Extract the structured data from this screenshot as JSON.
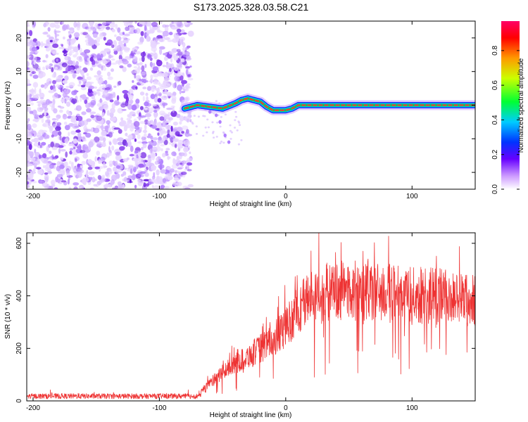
{
  "title": "S173.2025.328.03.58.C21",
  "chart_data": [
    {
      "type": "heatmap",
      "title": "S173.2025.328.03.58.C21",
      "xlabel": "Height of straight line (km)",
      "ylabel": "Frequency (Hz)",
      "xlim": [
        -205,
        150
      ],
      "ylim": [
        -25,
        25
      ],
      "xticks": [
        -200,
        -100,
        0,
        100
      ],
      "yticks": [
        -20,
        -10,
        0,
        10,
        20
      ],
      "noise_region": [
        -205,
        -75
      ],
      "signal_trace": {
        "x": [
          -80,
          -70,
          -60,
          -50,
          -40,
          -35,
          -30,
          -25,
          -20,
          -15,
          -10,
          -5,
          0,
          5,
          10,
          20,
          40,
          60,
          80,
          100,
          120,
          150
        ],
        "y": [
          -1,
          0,
          -0.5,
          -1,
          0.5,
          1.5,
          2,
          1.5,
          1,
          -0.5,
          -1.5,
          -1.5,
          -1.5,
          -1,
          0,
          0,
          0,
          0,
          0,
          0,
          0,
          0
        ]
      },
      "colorbar": {
        "label": "Normalized spectral amplitude",
        "ticks": [
          0.0,
          0.2,
          0.4,
          0.6,
          0.8
        ],
        "range": [
          0,
          0.97
        ]
      }
    },
    {
      "type": "line",
      "xlabel": "Height of straight line (km)",
      "ylabel": "SNR (10 * v/v)",
      "xlim": [
        -205,
        150
      ],
      "ylim": [
        0,
        640
      ],
      "xticks": [
        -200,
        -100,
        0,
        100
      ],
      "yticks": [
        0,
        200,
        400,
        600
      ],
      "series": [
        {
          "name": "SNR",
          "color": "#ee3333",
          "envelope_x": [
            -205,
            -70,
            -65,
            -50,
            -30,
            -10,
            0,
            10,
            20,
            40,
            60,
            80,
            100,
            120,
            150
          ],
          "envelope_mean": [
            18,
            18,
            45,
            110,
            170,
            230,
            280,
            350,
            400,
            420,
            420,
            410,
            400,
            400,
            380
          ]
        }
      ]
    }
  ],
  "colors": {
    "snr_line": "#ee3333",
    "noise": "#7a2ee6",
    "trace_edge": "#2233ff",
    "trace_mid": "#00cc66",
    "trace_core": "#ff3333"
  }
}
